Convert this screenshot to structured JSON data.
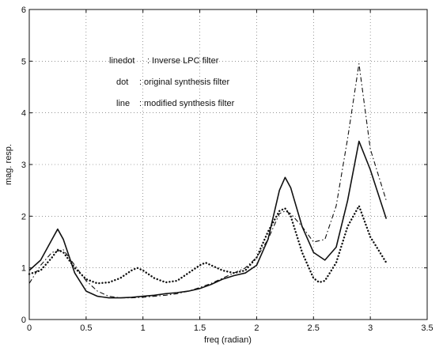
{
  "chart_data": {
    "type": "line",
    "title": "",
    "xlabel": "freq (radian)",
    "ylabel": "mag. resp.",
    "xlim": [
      0,
      3.5
    ],
    "ylim": [
      0,
      6
    ],
    "grid": true,
    "xticks": [
      "0",
      "0.5",
      "1",
      "1.5",
      "2",
      "2.5",
      "3",
      "3.5"
    ],
    "yticks": [
      "0",
      "1",
      "2",
      "3",
      "4",
      "5",
      "6"
    ],
    "legend": [
      {
        "key": "linedot",
        "sep": ":",
        "text": "Inverse LPC filter"
      },
      {
        "key": "dot",
        "sep": ":",
        "text": "original synthesis filter"
      },
      {
        "key": "line",
        "sep": ":",
        "text": "modified synthesis filter"
      }
    ],
    "series": [
      {
        "name": "linedot",
        "style": "dashdot",
        "x": [
          0,
          0.1,
          0.2,
          0.3,
          0.4,
          0.5,
          0.6,
          0.7,
          0.8,
          0.9,
          1.0,
          1.1,
          1.2,
          1.3,
          1.4,
          1.5,
          1.6,
          1.7,
          1.8,
          1.9,
          2.0,
          2.1,
          2.2,
          2.25,
          2.3,
          2.4,
          2.5,
          2.6,
          2.7,
          2.8,
          2.9,
          3.0,
          3.14
        ],
        "y": [
          0.7,
          1.05,
          1.3,
          1.35,
          1.05,
          0.75,
          0.55,
          0.45,
          0.42,
          0.42,
          0.43,
          0.45,
          0.47,
          0.5,
          0.55,
          0.62,
          0.7,
          0.8,
          0.9,
          1.0,
          1.2,
          1.55,
          2.05,
          2.1,
          2.05,
          1.8,
          1.5,
          1.55,
          2.2,
          3.5,
          4.95,
          3.3,
          2.3
        ]
      },
      {
        "name": "dot",
        "style": "dotted",
        "x": [
          0,
          0.1,
          0.2,
          0.25,
          0.3,
          0.4,
          0.5,
          0.6,
          0.7,
          0.8,
          0.9,
          0.95,
          1.0,
          1.1,
          1.2,
          1.3,
          1.4,
          1.5,
          1.55,
          1.6,
          1.7,
          1.8,
          1.9,
          2.0,
          2.1,
          2.2,
          2.25,
          2.3,
          2.4,
          2.5,
          2.55,
          2.6,
          2.7,
          2.8,
          2.9,
          3.0,
          3.14
        ],
        "y": [
          0.88,
          0.95,
          1.2,
          1.35,
          1.3,
          1.0,
          0.78,
          0.7,
          0.72,
          0.8,
          0.95,
          1.0,
          0.95,
          0.8,
          0.72,
          0.75,
          0.9,
          1.05,
          1.1,
          1.05,
          0.95,
          0.9,
          0.95,
          1.2,
          1.7,
          2.1,
          2.15,
          2.0,
          1.3,
          0.8,
          0.72,
          0.75,
          1.1,
          1.8,
          2.2,
          1.6,
          1.1
        ]
      },
      {
        "name": "line",
        "style": "solid",
        "x": [
          0,
          0.1,
          0.2,
          0.25,
          0.3,
          0.4,
          0.5,
          0.6,
          0.7,
          0.8,
          0.9,
          1.0,
          1.1,
          1.2,
          1.3,
          1.4,
          1.5,
          1.6,
          1.7,
          1.8,
          1.9,
          2.0,
          2.1,
          2.2,
          2.25,
          2.3,
          2.4,
          2.5,
          2.6,
          2.7,
          2.8,
          2.9,
          3.0,
          3.14
        ],
        "y": [
          0.95,
          1.15,
          1.55,
          1.75,
          1.55,
          0.9,
          0.55,
          0.45,
          0.42,
          0.42,
          0.43,
          0.45,
          0.47,
          0.5,
          0.52,
          0.55,
          0.6,
          0.68,
          0.78,
          0.85,
          0.9,
          1.05,
          1.55,
          2.5,
          2.75,
          2.55,
          1.8,
          1.3,
          1.15,
          1.4,
          2.3,
          3.45,
          2.9,
          1.95
        ]
      }
    ]
  }
}
